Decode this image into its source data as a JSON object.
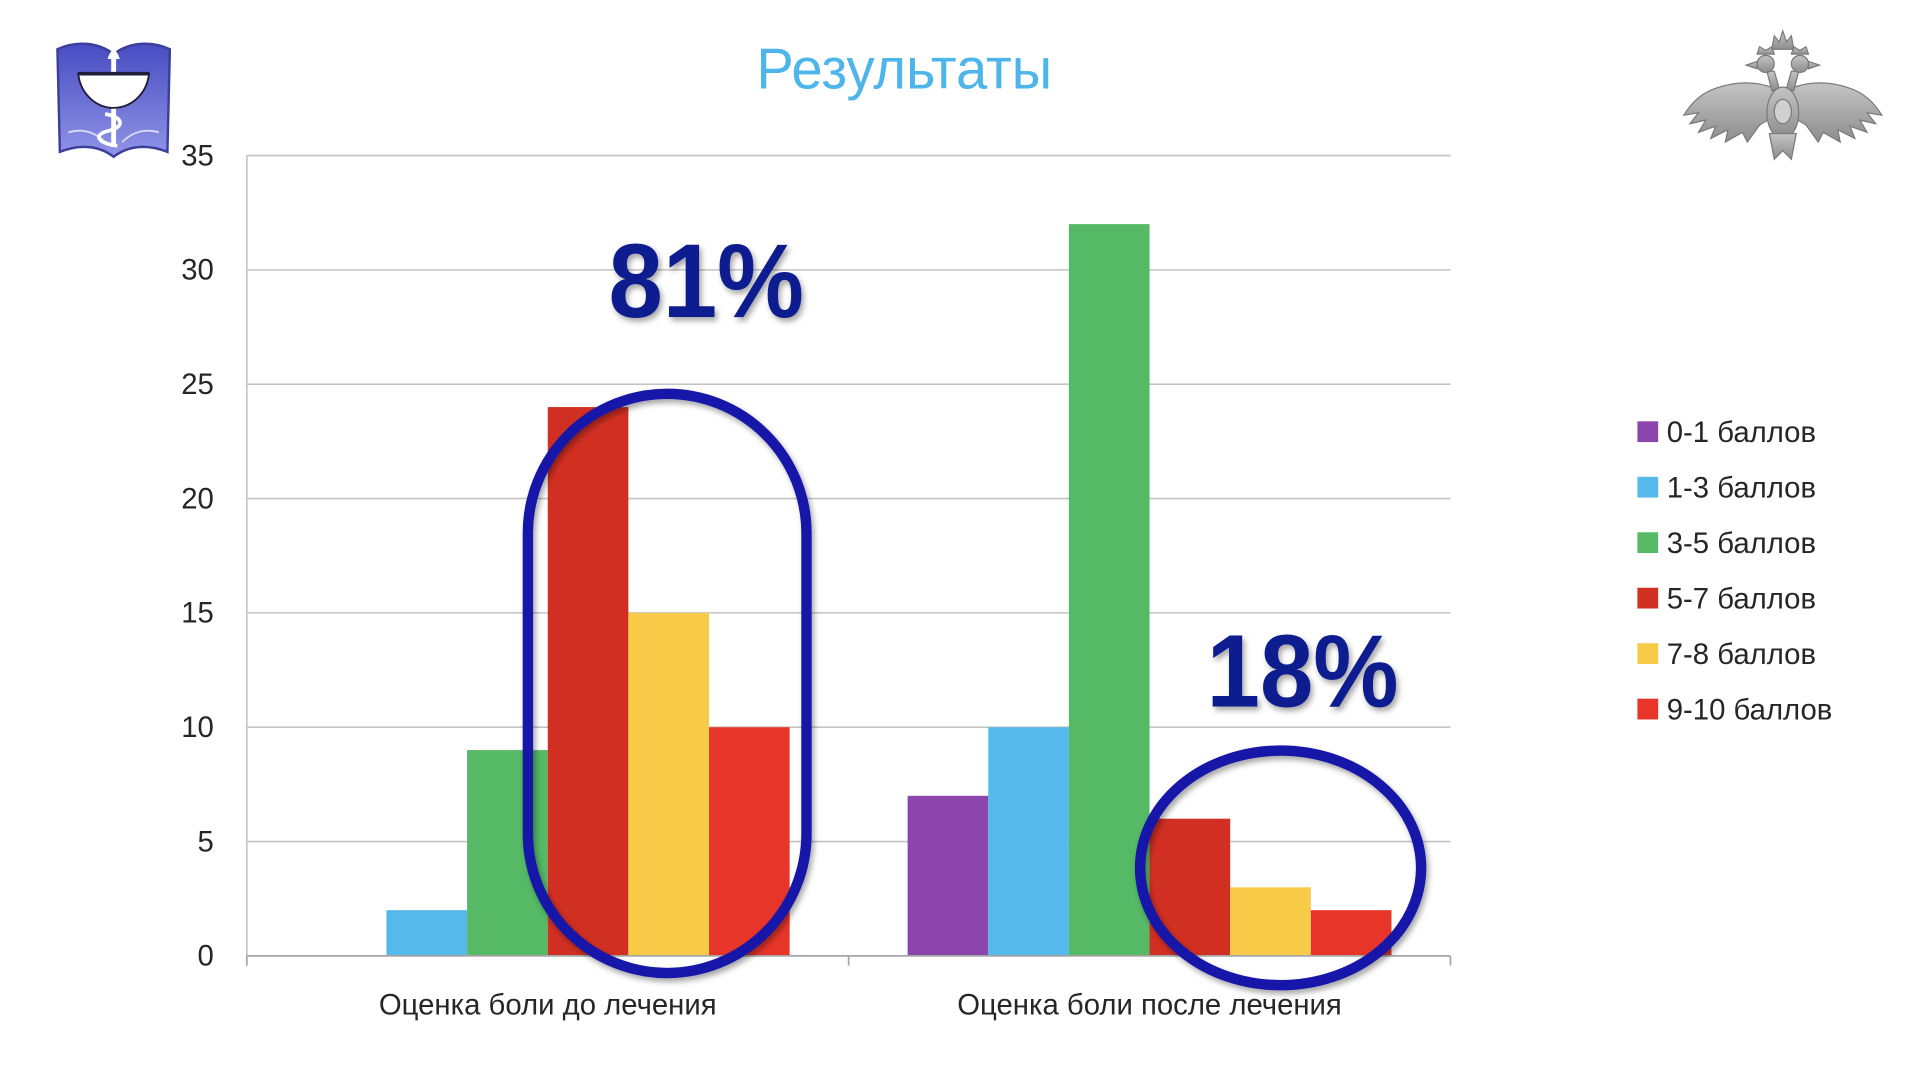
{
  "chart_data": {
    "type": "bar",
    "title": "Результаты",
    "categories": [
      "Оценка боли до лечения",
      "Оценка боли после лечения"
    ],
    "series": [
      {
        "name": "0-1 баллов",
        "values": [
          0,
          7
        ],
        "color": "#8b45ad"
      },
      {
        "name": "1-3 баллов",
        "values": [
          2,
          10
        ],
        "color": "#56b9ec"
      },
      {
        "name": "3-5 баллов",
        "values": [
          9,
          32
        ],
        "color": "#55b966"
      },
      {
        "name": "5-7 баллов",
        "values": [
          24,
          6
        ],
        "color": "#d12f22"
      },
      {
        "name": "7-8 баллов",
        "values": [
          15,
          3
        ],
        "color": "#f7cb48"
      },
      {
        "name": "9-10 баллов",
        "values": [
          10,
          2
        ],
        "color": "#e8352a"
      }
    ],
    "ylim": [
      0,
      35
    ],
    "yticks": [
      0,
      5,
      10,
      15,
      20,
      25,
      30,
      35
    ],
    "grid": true,
    "legend": "right",
    "annotations": [
      "81%",
      "18%"
    ]
  },
  "colors": {
    "title": "#4db5e9",
    "annotation_text": "#101a8e",
    "highlight_ring": "#1717a8",
    "gridline": "#c3c3c3"
  },
  "icons": {
    "top_left_logo": "medical-emblem-icon",
    "top_right_logo": "double-headed-eagle-icon"
  }
}
